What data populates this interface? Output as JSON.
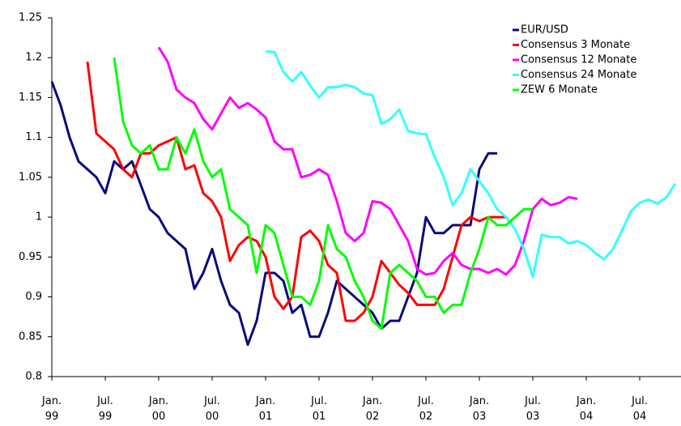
{
  "chart_data": {
    "type": "line",
    "categories": [
      "Jan. 99",
      null,
      null,
      null,
      null,
      null,
      "Jul. 99",
      null,
      null,
      null,
      null,
      null,
      "Jan. 00",
      null,
      null,
      null,
      null,
      null,
      "Jul. 00",
      null,
      null,
      null,
      null,
      null,
      "Jan. 01",
      null,
      null,
      null,
      null,
      null,
      "Jul. 01",
      null,
      null,
      null,
      null,
      null,
      "Jan. 02",
      null,
      null,
      null,
      null,
      null,
      "Jul. 02",
      null,
      null,
      null,
      null,
      null,
      "Jan. 03",
      null,
      null,
      null,
      null,
      null,
      "Jul. 03",
      null,
      null,
      null,
      null,
      null,
      "Jan. 04",
      null,
      null,
      null,
      null,
      null,
      "Jul. 04",
      null,
      null,
      null,
      null
    ],
    "series": [
      {
        "name": "EUR/USD",
        "color": "#0a0a7a",
        "values": [
          1.17,
          1.14,
          1.1,
          1.07,
          1.06,
          1.05,
          1.03,
          1.07,
          1.06,
          1.07,
          1.04,
          1.01,
          1.0,
          0.98,
          0.97,
          0.96,
          0.91,
          0.93,
          0.96,
          0.92,
          0.89,
          0.88,
          0.84,
          0.87,
          0.93,
          0.93,
          0.92,
          0.88,
          0.89,
          0.85,
          0.85,
          0.88,
          0.92,
          0.91,
          0.9,
          0.89,
          0.88,
          0.86,
          0.87,
          0.87,
          0.9,
          0.93,
          1.0,
          0.98,
          0.98,
          0.99,
          0.99,
          0.99,
          1.06,
          1.08,
          1.08,
          null,
          null,
          null,
          null,
          null,
          null,
          null,
          null,
          null,
          null,
          null,
          null,
          null,
          null,
          null,
          null,
          null,
          null,
          null,
          null
        ]
      },
      {
        "name": "Consensus 3 Monate",
        "color": "#ff0000",
        "values": [
          null,
          null,
          null,
          null,
          1.195,
          1.105,
          1.095,
          1.085,
          1.06,
          1.05,
          1.08,
          1.08,
          1.09,
          1.095,
          1.1,
          1.06,
          1.065,
          1.03,
          1.02,
          1.0,
          0.945,
          0.965,
          0.975,
          0.97,
          0.95,
          0.9,
          0.885,
          0.9,
          0.975,
          0.983,
          0.97,
          0.94,
          0.93,
          0.87,
          0.87,
          0.88,
          0.9,
          0.945,
          0.93,
          0.915,
          0.905,
          0.89,
          0.89,
          0.89,
          0.91,
          0.95,
          0.99,
          1.0,
          0.995,
          1.0,
          1.0,
          1.0,
          null,
          null,
          null,
          null,
          null,
          null,
          null,
          null,
          null,
          null,
          null,
          null,
          null,
          null,
          null,
          null,
          null,
          null,
          null
        ]
      },
      {
        "name": "Consensus 12 Monate",
        "color": "#ff00ff",
        "values": [
          null,
          null,
          null,
          null,
          null,
          null,
          null,
          null,
          null,
          null,
          null,
          null,
          1.213,
          1.195,
          1.16,
          1.15,
          1.143,
          1.123,
          1.11,
          1.13,
          1.15,
          1.137,
          1.143,
          1.135,
          1.125,
          1.095,
          1.085,
          1.085,
          1.05,
          1.053,
          1.06,
          1.053,
          1.02,
          0.98,
          0.97,
          0.98,
          1.02,
          1.018,
          1.01,
          0.99,
          0.97,
          0.935,
          0.928,
          0.93,
          0.945,
          0.955,
          0.94,
          0.935,
          0.935,
          0.93,
          0.935,
          0.928,
          0.94,
          0.97,
          1.01,
          1.023,
          1.015,
          1.018,
          1.025,
          1.023,
          null,
          null,
          null,
          null,
          null,
          null,
          null,
          null,
          null,
          null,
          null
        ]
      },
      {
        "name": "Consensus 24 Monate",
        "color": "#33ffff",
        "values": [
          null,
          null,
          null,
          null,
          null,
          null,
          null,
          null,
          null,
          null,
          null,
          null,
          null,
          null,
          null,
          null,
          null,
          null,
          null,
          null,
          null,
          null,
          null,
          null,
          1.208,
          1.207,
          1.182,
          1.17,
          1.182,
          1.165,
          1.15,
          1.163,
          1.163,
          1.166,
          1.163,
          1.155,
          1.153,
          1.117,
          1.123,
          1.135,
          1.108,
          1.105,
          1.104,
          1.075,
          1.05,
          1.015,
          1.03,
          1.06,
          1.045,
          1.03,
          1.01,
          1.0,
          0.985,
          0.96,
          0.925,
          0.978,
          0.975,
          0.975,
          0.967,
          0.97,
          0.965,
          0.955,
          0.947,
          0.96,
          0.983,
          1.007,
          1.018,
          1.022,
          1.017,
          1.025,
          1.042
        ]
      },
      {
        "name": "ZEW 6 Monate",
        "color": "#00ff00",
        "values": [
          null,
          null,
          null,
          null,
          null,
          null,
          null,
          1.2,
          1.12,
          1.09,
          1.08,
          1.09,
          1.06,
          1.06,
          1.1,
          1.08,
          1.11,
          1.07,
          1.05,
          1.06,
          1.01,
          1.0,
          0.99,
          0.93,
          0.99,
          0.98,
          0.94,
          0.9,
          0.9,
          0.89,
          0.92,
          0.99,
          0.96,
          0.95,
          0.92,
          0.9,
          0.87,
          0.86,
          0.93,
          0.94,
          0.93,
          0.92,
          0.9,
          0.9,
          0.88,
          0.89,
          0.89,
          0.93,
          0.96,
          1.0,
          0.99,
          0.99,
          1.0,
          1.01,
          1.01,
          null,
          null,
          null,
          null,
          null,
          null,
          null,
          null,
          null,
          null,
          null,
          null,
          null,
          null,
          null,
          null
        ]
      }
    ],
    "ylim": [
      0.8,
      1.25
    ],
    "yticks": [
      0.8,
      0.85,
      0.9,
      0.95,
      1,
      1.05,
      1.1,
      1.15,
      1.2,
      1.25
    ],
    "grid": false,
    "legend": "upper right"
  }
}
